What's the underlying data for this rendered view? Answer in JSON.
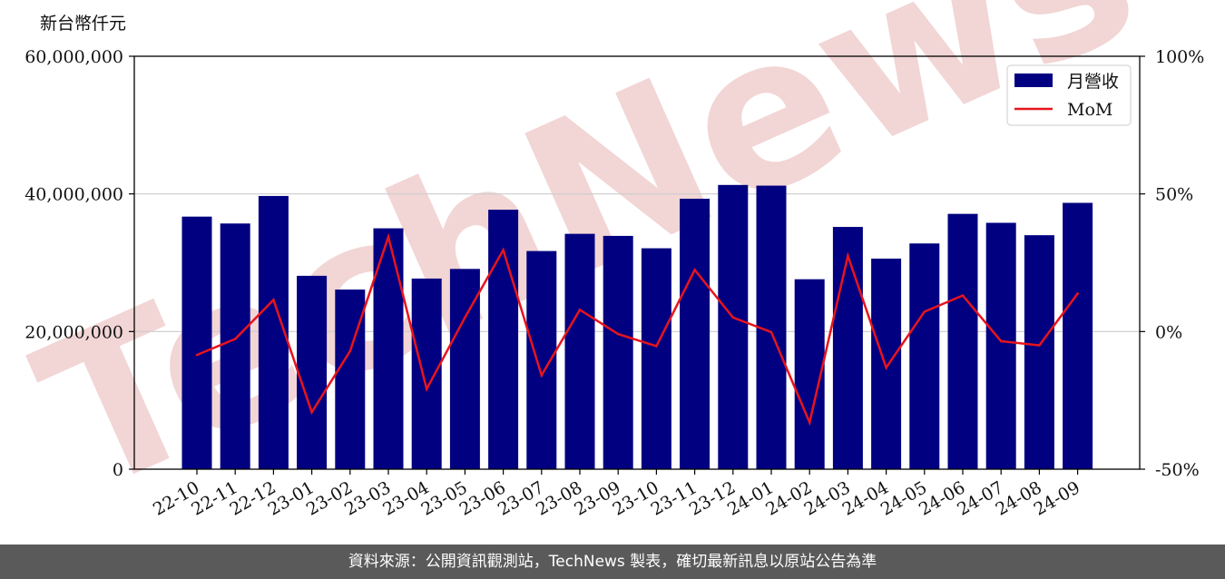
{
  "footer": {
    "source": "資料來源：公開資訊觀測站，TechNews 製表，確切最新訊息以原站公告為準"
  },
  "watermark": {
    "text": "TechNews",
    "color": "#f2d5d5"
  },
  "chart_data": {
    "type": "bar",
    "unit_label": "新台幣仟元",
    "categories": [
      "22-10",
      "22-11",
      "22-12",
      "23-01",
      "23-02",
      "23-03",
      "23-04",
      "23-05",
      "23-06",
      "23-07",
      "23-08",
      "23-09",
      "23-10",
      "23-11",
      "23-12",
      "24-01",
      "24-02",
      "24-03",
      "24-04",
      "24-05",
      "24-06",
      "24-07",
      "24-08",
      "24-09"
    ],
    "series": [
      {
        "name": "月營收",
        "type": "bar",
        "axis": "left",
        "color": "#000080",
        "values": [
          36700000,
          35700000,
          39700000,
          28100000,
          26100000,
          35000000,
          27700000,
          29100000,
          37700000,
          31700000,
          34200000,
          33900000,
          32100000,
          39300000,
          41300000,
          41200000,
          27600000,
          35200000,
          30600000,
          32800000,
          37100000,
          35800000,
          34000000,
          38700000
        ]
      },
      {
        "name": "MoM",
        "type": "line",
        "axis": "right",
        "color": "#e8141c",
        "values": [
          -8.5,
          -2.7,
          11.5,
          -29.3,
          -7.1,
          34.4,
          -20.9,
          5.1,
          29.6,
          -15.9,
          7.9,
          -0.9,
          -5.3,
          22.4,
          5.1,
          -0.2,
          -33.0,
          27.5,
          -13.1,
          7.2,
          13.1,
          -3.5,
          -5.0,
          13.8
        ]
      }
    ],
    "y_left": {
      "ylim": [
        0,
        60000000
      ],
      "ticks": [
        0,
        20000000,
        40000000,
        60000000
      ],
      "tick_labels": [
        "0",
        "20,000,000",
        "40,000,000",
        "60,000,000"
      ]
    },
    "y_right": {
      "ylim": [
        -50,
        100
      ],
      "ticks": [
        -50,
        0,
        50,
        100
      ],
      "tick_labels": [
        "-50%",
        "0%",
        "50%",
        "100%"
      ]
    },
    "grid": "horizontal",
    "legend": "top-right"
  }
}
